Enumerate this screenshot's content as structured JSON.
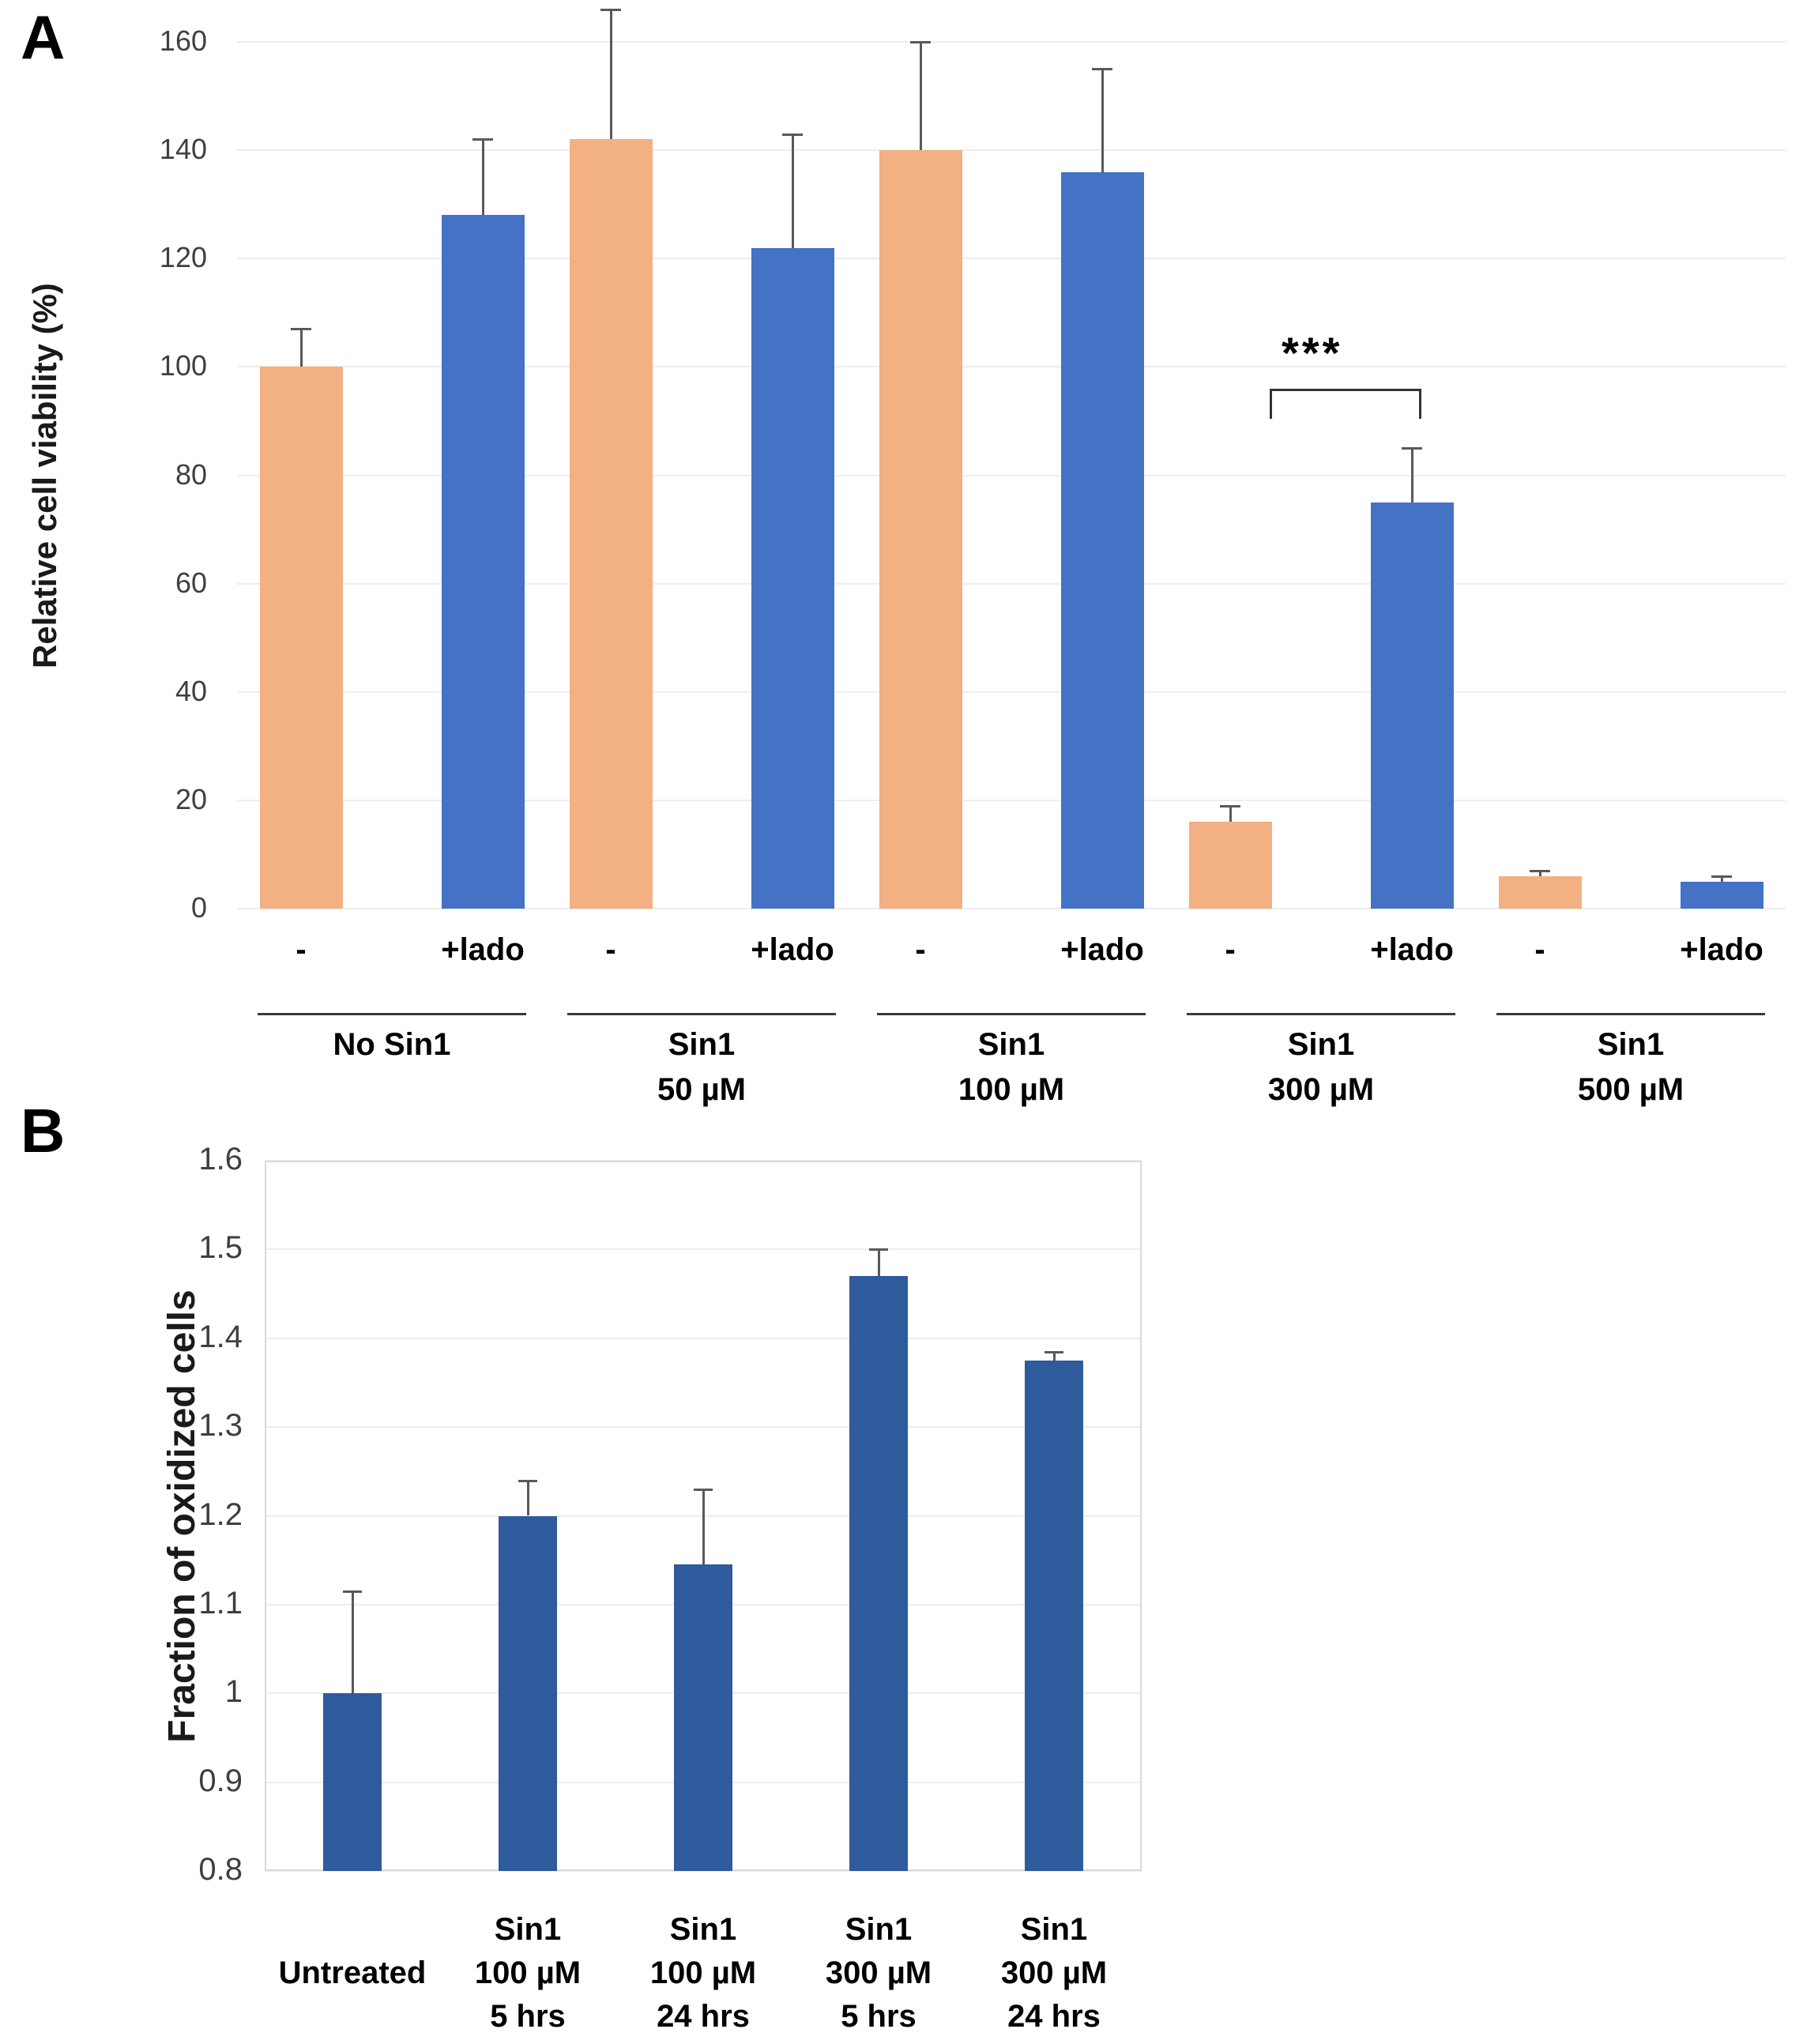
{
  "page": {
    "background": "#ffffff"
  },
  "colors": {
    "orange": "#F2B083",
    "blue": "#4472C4",
    "dark_blue": "#2E5B9C",
    "error_bar": "#595959",
    "gridline": "#EDEDED",
    "plot_border": "#D9D9D9",
    "underline": "#3A3A3A",
    "tick_text": "#3F3F3F",
    "label_text": "#000000"
  },
  "panelA": {
    "letter": "A"
  },
  "panelB": {
    "letter": "B"
  },
  "chart_data": [
    {
      "type": "bar",
      "panel": "A",
      "title": "",
      "xlabel": "",
      "ylabel": "Relative cell viability  (%)",
      "ylim": [
        0,
        160
      ],
      "yticks": [
        0,
        20,
        40,
        60,
        80,
        100,
        120,
        140,
        160
      ],
      "ytick_labels": [
        "0",
        "20",
        "40",
        "60",
        "80",
        "100",
        "120",
        "140",
        "160"
      ],
      "grid": true,
      "legend_position": "none",
      "series_labels": {
        "minus": "-",
        "plus": "+lado"
      },
      "groups": [
        {
          "group_label_lines": [
            "No Sin1"
          ],
          "bars": [
            {
              "label": "-",
              "series": "minus",
              "value": 100,
              "error": 7
            },
            {
              "label": "+lado",
              "series": "plus",
              "value": 128,
              "error": 14
            }
          ]
        },
        {
          "group_label_lines": [
            "Sin1",
            "50 µM"
          ],
          "bars": [
            {
              "label": "-",
              "series": "minus",
              "value": 142,
              "error": 24
            },
            {
              "label": "+lado",
              "series": "plus",
              "value": 122,
              "error": 21
            }
          ]
        },
        {
          "group_label_lines": [
            "Sin1",
            "100 µM"
          ],
          "bars": [
            {
              "label": "-",
              "series": "minus",
              "value": 140,
              "error": 20
            },
            {
              "label": "+lado",
              "series": "plus",
              "value": 136,
              "error": 19
            }
          ]
        },
        {
          "group_label_lines": [
            "Sin1",
            "300 µM"
          ],
          "bars": [
            {
              "label": "-",
              "series": "minus",
              "value": 16,
              "error": 3
            },
            {
              "label": "+lado",
              "series": "plus",
              "value": 75,
              "error": 10
            }
          ]
        },
        {
          "group_label_lines": [
            "Sin1",
            "500 µM"
          ],
          "bars": [
            {
              "label": "-",
              "series": "minus",
              "value": 6,
              "error": 1
            },
            {
              "label": "+lado",
              "series": "plus",
              "value": 5,
              "error": 1
            }
          ]
        }
      ],
      "significance": {
        "text": "***",
        "group_index": 3,
        "between": [
          "-",
          "+lado"
        ],
        "bracket_value": 96
      }
    },
    {
      "type": "bar",
      "panel": "B",
      "title": "",
      "xlabel": "",
      "ylabel": "Fraction of oxidized cells",
      "ylim": [
        0.8,
        1.6
      ],
      "yticks": [
        0.8,
        0.9,
        1.0,
        1.1,
        1.2,
        1.3,
        1.4,
        1.5,
        1.6
      ],
      "ytick_labels": [
        "0.8",
        "0.9",
        "1",
        "1.1",
        "1.2",
        "1.3",
        "1.4",
        "1.5",
        "1.6"
      ],
      "grid": true,
      "legend_position": "none",
      "categories": [
        [
          "Untreated"
        ],
        [
          "Sin1",
          "100 µM",
          "5 hrs"
        ],
        [
          "Sin1",
          "100 µM",
          "24 hrs"
        ],
        [
          "Sin1",
          "300 µM",
          "5 hrs"
        ],
        [
          "Sin1",
          "300 µM",
          "24 hrs"
        ]
      ],
      "values": [
        1.0,
        1.2,
        1.145,
        1.47,
        1.375
      ],
      "errors": [
        0.115,
        0.04,
        0.085,
        0.03,
        0.01
      ]
    }
  ]
}
